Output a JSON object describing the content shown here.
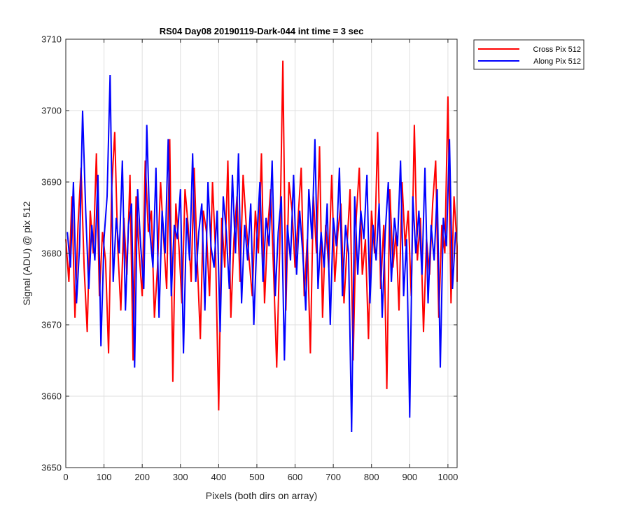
{
  "chart_data": {
    "type": "line",
    "title": "RS04 Day08 20190119-Dark-044 int time = 3 sec",
    "xlabel": "Pixels (both dirs on array)",
    "ylabel": "Signal (ADU) @ pix 512",
    "xlim": [
      0,
      1024
    ],
    "ylim": [
      3650,
      3710
    ],
    "xticks": [
      0,
      100,
      200,
      300,
      400,
      500,
      600,
      700,
      800,
      900,
      1000
    ],
    "yticks": [
      3650,
      3660,
      3670,
      3680,
      3690,
      3700,
      3710
    ],
    "grid": true,
    "legend_position": "outside-top-right",
    "series": [
      {
        "name": "Cross Pix 512",
        "color": "#ff0000",
        "x_start": 0,
        "x_step": 8,
        "values": [
          3682,
          3676,
          3688,
          3671,
          3684,
          3692,
          3678,
          3669,
          3686,
          3680,
          3694,
          3674,
          3683,
          3679,
          3666,
          3689,
          3697,
          3681,
          3672,
          3685,
          3677,
          3691,
          3665,
          3688,
          3680,
          3674,
          3693,
          3683,
          3686,
          3671,
          3678,
          3690,
          3682,
          3675,
          3696,
          3662,
          3687,
          3681,
          3673,
          3689,
          3684,
          3676,
          3692,
          3679,
          3668,
          3686,
          3683,
          3674,
          3690,
          3680,
          3658,
          3685,
          3678,
          3693,
          3671,
          3682,
          3688,
          3676,
          3691,
          3684,
          3679,
          3674,
          3686,
          3680,
          3694,
          3673,
          3683,
          3689,
          3677,
          3664,
          3681,
          3707,
          3672,
          3690,
          3686,
          3678,
          3685,
          3692,
          3674,
          3682,
          3666,
          3688,
          3680,
          3695,
          3671,
          3684,
          3678,
          3691,
          3676,
          3683,
          3687,
          3673,
          3681,
          3689,
          3665,
          3685,
          3692,
          3677,
          3682,
          3668,
          3686,
          3680,
          3697,
          3675,
          3684,
          3661,
          3689,
          3678,
          3683,
          3672,
          3690,
          3681,
          3686,
          3674,
          3698,
          3679,
          3685,
          3669,
          3682,
          3677,
          3687,
          3693,
          3671,
          3684,
          3680,
          3702,
          3673,
          3688,
          3681,
          3676
        ],
        "annotations": "values approximated from noisy trace; visual range approx 3658-3707 ADU"
      },
      {
        "name": "Along Pix 512",
        "color": "#0000ff",
        "x_start": 4,
        "x_step": 8,
        "values": [
          3683,
          3678,
          3690,
          3673,
          3681,
          3700,
          3686,
          3675,
          3684,
          3679,
          3691,
          3667,
          3682,
          3688,
          3705,
          3676,
          3685,
          3680,
          3693,
          3672,
          3684,
          3687,
          3664,
          3689,
          3681,
          3675,
          3698,
          3683,
          3678,
          3692,
          3671,
          3686,
          3680,
          3696,
          3674,
          3684,
          3682,
          3689,
          3666,
          3685,
          3679,
          3694,
          3676,
          3683,
          3687,
          3672,
          3690,
          3681,
          3678,
          3686,
          3669,
          3688,
          3683,
          3675,
          3691,
          3680,
          3694,
          3673,
          3684,
          3679,
          3687,
          3670,
          3682,
          3690,
          3676,
          3685,
          3681,
          3693,
          3674,
          3683,
          3688,
          3665,
          3684,
          3679,
          3691,
          3677,
          3686,
          3680,
          3672,
          3689,
          3682,
          3696,
          3675,
          3683,
          3678,
          3687,
          3670,
          3685,
          3681,
          3692,
          3674,
          3684,
          3680,
          3655,
          3688,
          3677,
          3686,
          3682,
          3691,
          3673,
          3684,
          3679,
          3687,
          3671,
          3683,
          3690,
          3676,
          3685,
          3681,
          3693,
          3674,
          3682,
          3657,
          3688,
          3680,
          3686,
          3677,
          3692,
          3673,
          3684,
          3679,
          3689,
          3664,
          3685,
          3681,
          3696,
          3675,
          3683
        ]
      }
    ]
  }
}
